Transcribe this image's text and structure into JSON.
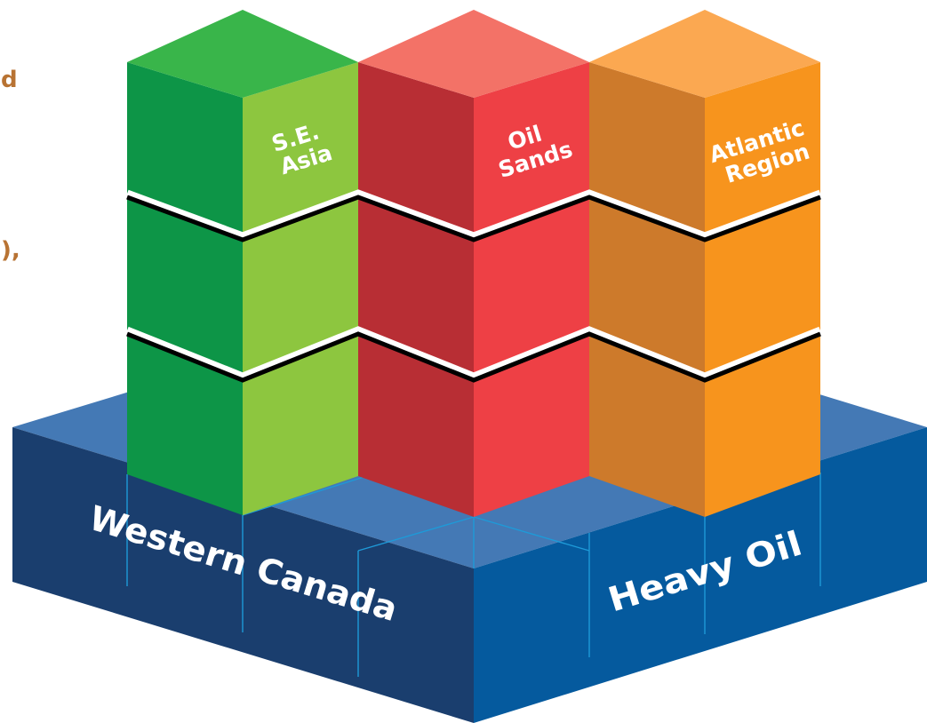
{
  "cropped_text": [
    "d",
    "),"
  ],
  "base": {
    "left_label": "Western Canada",
    "right_label": "Heavy Oil"
  },
  "columns": [
    {
      "label_lines": [
        "S.E.",
        "Asia"
      ],
      "colors": {
        "top": "#39B54A",
        "left": "#0D9547",
        "right": "#8DC63F"
      }
    },
    {
      "label_lines": [
        "Oil",
        "Sands"
      ],
      "colors": {
        "top": "#F37267",
        "left": "#B82E34",
        "right": "#EE4045"
      }
    },
    {
      "label_lines": [
        "Atlantic",
        "Region"
      ],
      "colors": {
        "top": "#FBA851",
        "left": "#CD7A2B",
        "right": "#F7941D"
      }
    }
  ],
  "colors": {
    "base_top": "#4479B5",
    "base_left": "#1A3E6E",
    "base_right": "#055A9E",
    "base_grid": "#1E9AD8",
    "separator": "#000000",
    "edge_text": "#B87333"
  }
}
